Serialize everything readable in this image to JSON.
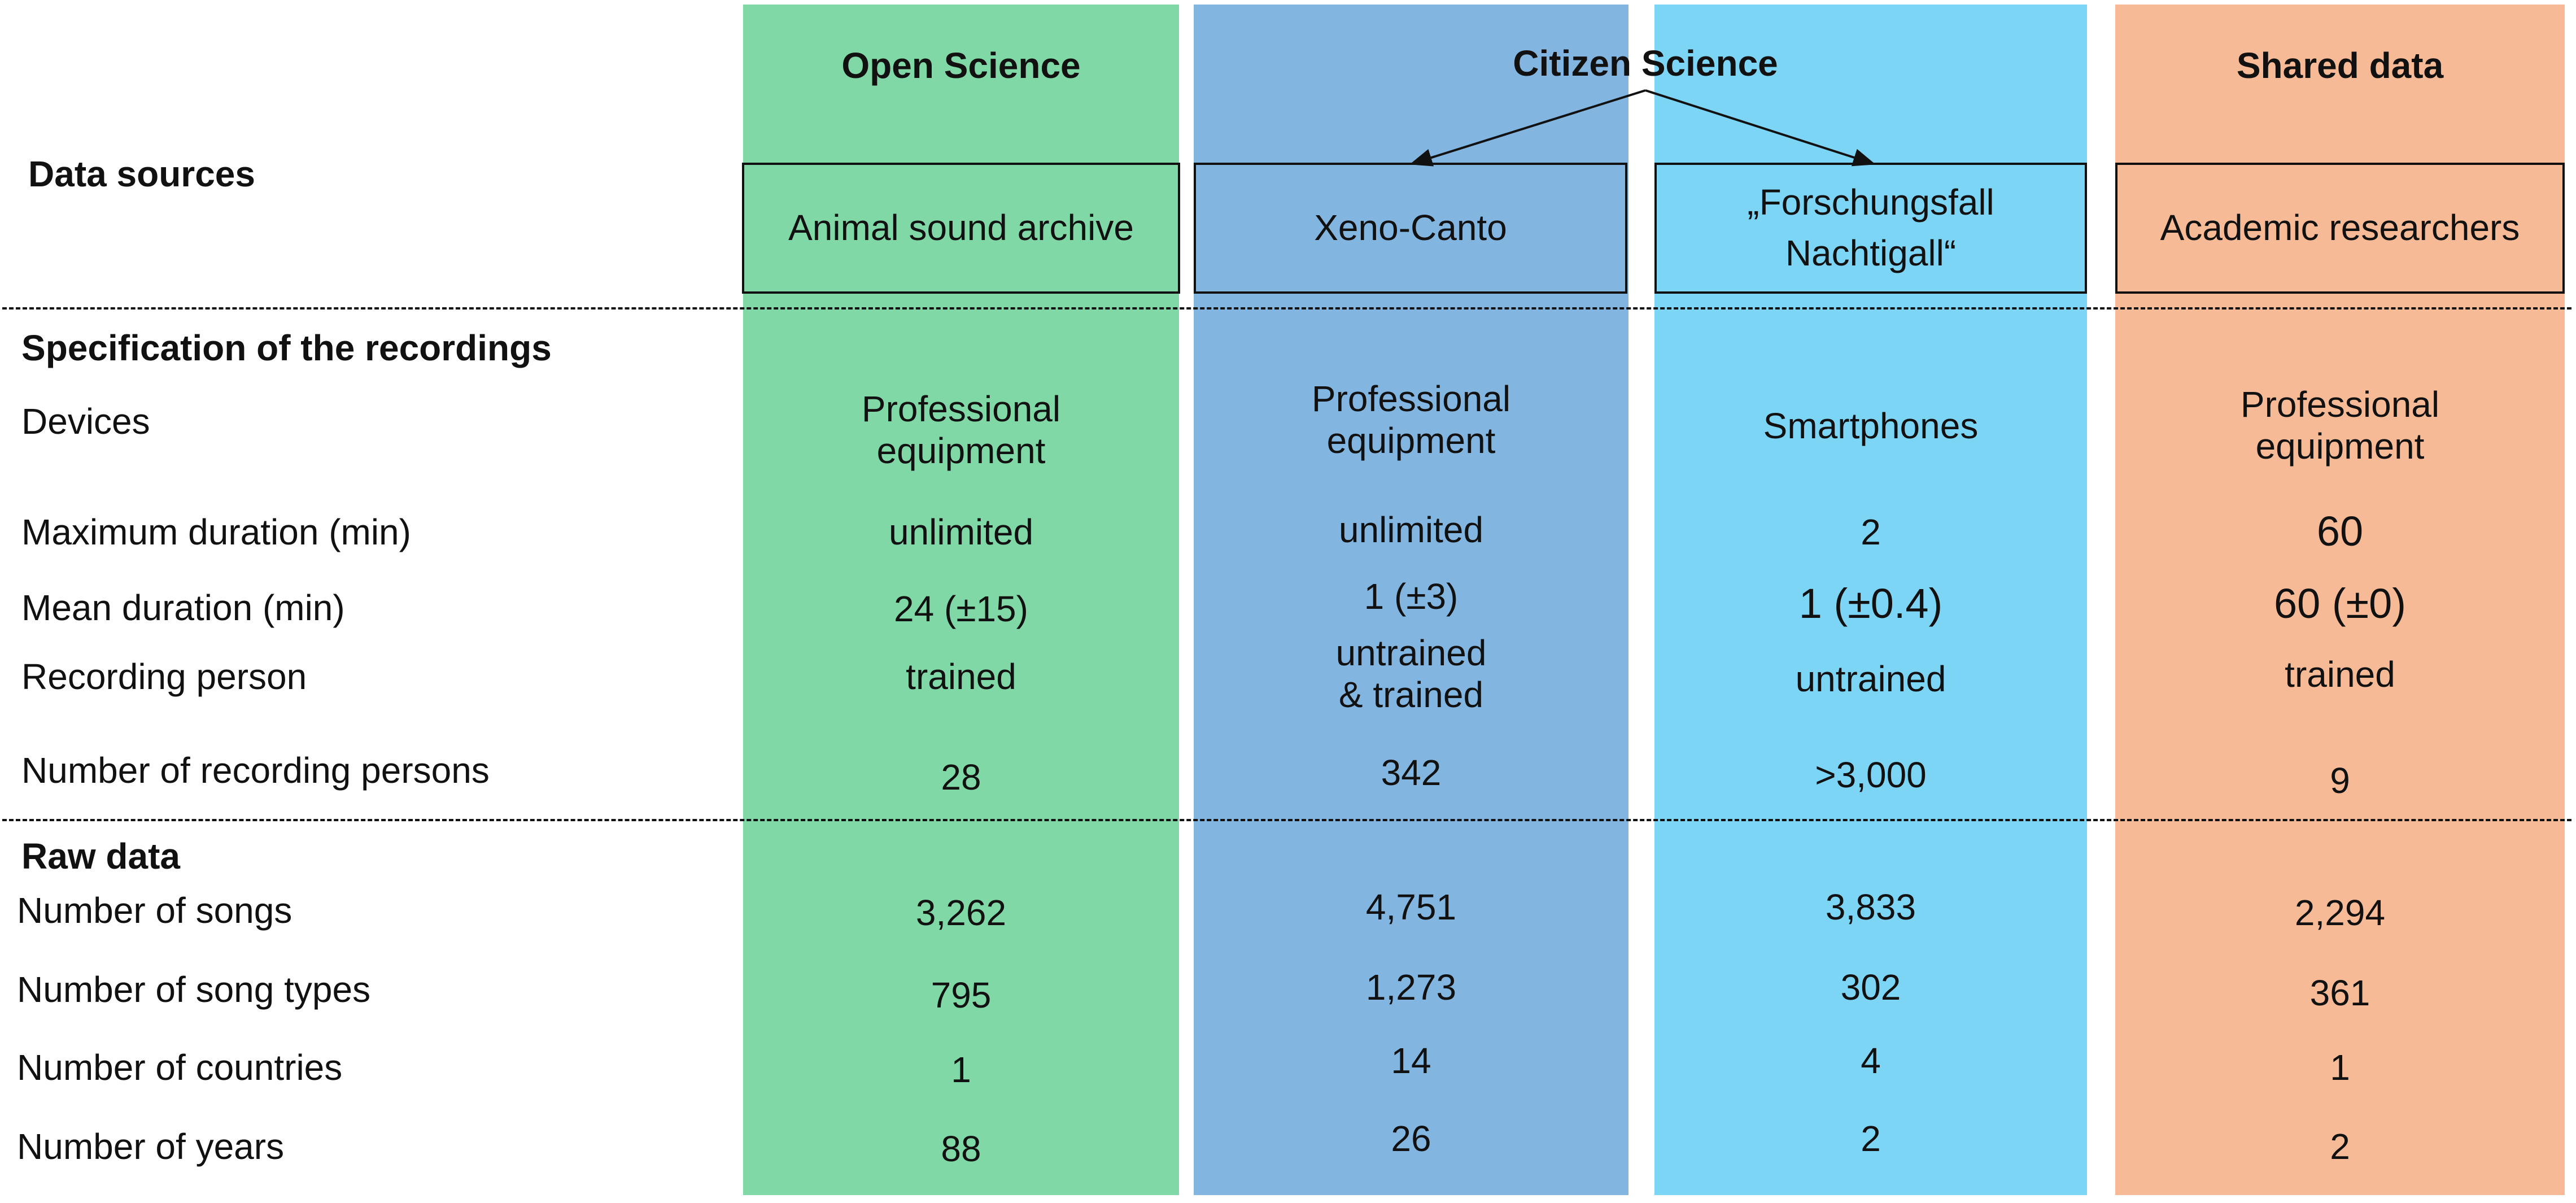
{
  "colors": {
    "open": "#80D8A6",
    "xeno": "#82B5E0",
    "forsch": "#7DD5F5",
    "shared": "#F6BB96"
  },
  "headers": {
    "open": "Open Science",
    "citizen": "Citizen Science",
    "shared": "Shared data"
  },
  "sources": {
    "label": "Data sources",
    "animal": "Animal sound archive",
    "xeno": "Xeno-Canto",
    "forsch": "„Forschungsfall\nNachtigall“",
    "academic": "Academic researchers"
  },
  "sections": {
    "spec": "Specification of the recordings",
    "raw": "Raw data"
  },
  "rows": [
    {
      "label": "Devices",
      "values": [
        "Professional\nequipment",
        "Professional\nequipment",
        "Smartphones",
        "Professional\nequipment"
      ]
    },
    {
      "label": "Maximum duration (min)",
      "values": [
        "unlimited",
        "unlimited",
        "2",
        "60"
      ]
    },
    {
      "label": "Mean duration (min)",
      "values": [
        "24 (±15)",
        "1 (±3)",
        "1 (±0.4)",
        "60 (±0)"
      ]
    },
    {
      "label": "Recording person",
      "values": [
        "trained",
        "untrained\n& trained",
        "untrained",
        "trained"
      ]
    },
    {
      "label": "Number of recording persons",
      "values": [
        "28",
        "342",
        ">3,000",
        "9"
      ]
    },
    {
      "label": "Number of songs",
      "values": [
        "3,262",
        "4,751",
        "3,833",
        "2,294"
      ]
    },
    {
      "label": "Number of song types",
      "values": [
        "795",
        "1,273",
        "302",
        "361"
      ]
    },
    {
      "label": "Number of countries",
      "values": [
        "1",
        "14",
        "4",
        "1"
      ]
    },
    {
      "label": "Number of years",
      "values": [
        "88",
        "26",
        "2",
        "2"
      ]
    }
  ]
}
